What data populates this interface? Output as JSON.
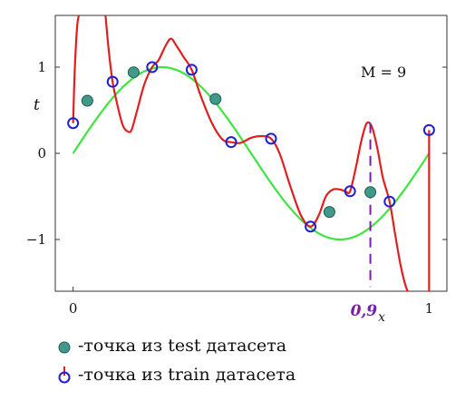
{
  "chart_data": {
    "type": "scatter",
    "ylabel": "t",
    "annotation": "M = 9",
    "xlim": [
      -0.05,
      1.05
    ],
    "ylim": [
      -1.6,
      1.6
    ],
    "x_ticks": [
      {
        "value": 0,
        "label": "0"
      },
      {
        "value": 1,
        "label": "1"
      }
    ],
    "y_ticks": [
      {
        "value": 1,
        "label": "1"
      },
      {
        "value": 0,
        "label": "0"
      },
      {
        "value": -1,
        "label": "−1"
      }
    ],
    "series": [
      {
        "name": "-точка из train датасета",
        "kind": "points",
        "points": [
          [
            0.0,
            0.35
          ],
          [
            0.111,
            0.83
          ],
          [
            0.222,
            1.0
          ],
          [
            0.333,
            0.97
          ],
          [
            0.444,
            0.13
          ],
          [
            0.556,
            0.17
          ],
          [
            0.667,
            -0.85
          ],
          [
            0.778,
            -0.44
          ],
          [
            0.889,
            -0.56
          ],
          [
            1.0,
            0.27
          ]
        ]
      },
      {
        "name": "-точка из test датасета",
        "kind": "points",
        "points": [
          [
            0.04,
            0.61
          ],
          [
            0.17,
            0.94
          ],
          [
            0.4,
            0.63
          ],
          [
            0.72,
            -0.68
          ],
          [
            0.835,
            -0.45
          ]
        ]
      },
      {
        "name": "sin(2πx)",
        "kind": "line",
        "x": [
          0,
          0.05,
          0.1,
          0.15,
          0.2,
          0.25,
          0.3,
          0.35,
          0.4,
          0.45,
          0.5,
          0.55,
          0.6,
          0.65,
          0.7,
          0.75,
          0.8,
          0.85,
          0.9,
          0.95,
          1.0
        ],
        "y": [
          0,
          0.309,
          0.588,
          0.809,
          0.951,
          1.0,
          0.951,
          0.809,
          0.588,
          0.309,
          0,
          -0.309,
          -0.588,
          -0.809,
          -0.951,
          -1.0,
          -0.951,
          -0.809,
          -0.588,
          -0.309,
          0
        ]
      },
      {
        "name": "M = 9 fit",
        "kind": "line",
        "segments": [
          {
            "x": [
              0.0,
              0.005,
              0.012,
              0.02
            ],
            "y": [
              0.35,
              1.0,
              1.5,
              1.65
            ]
          },
          {
            "x": [
              0.09,
              0.1,
              0.111,
              0.125,
              0.14,
              0.155,
              0.165,
              0.18,
              0.2,
              0.222,
              0.24,
              0.26,
              0.275,
              0.29,
              0.31,
              0.333,
              0.36,
              0.39,
              0.42,
              0.444,
              0.47,
              0.5,
              0.53,
              0.556,
              0.58,
              0.61,
              0.64,
              0.667,
              0.69,
              0.71,
              0.73,
              0.75,
              0.765,
              0.778,
              0.795,
              0.81,
              0.825,
              0.84,
              0.855,
              0.87,
              0.889,
              0.905,
              0.92,
              0.935,
              0.95
            ],
            "y": [
              1.65,
              1.2,
              0.83,
              0.55,
              0.32,
              0.25,
              0.28,
              0.5,
              0.8,
              1.0,
              1.08,
              1.25,
              1.33,
              1.25,
              1.12,
              0.97,
              0.65,
              0.35,
              0.16,
              0.13,
              0.12,
              0.18,
              0.2,
              0.17,
              0.0,
              -0.38,
              -0.72,
              -0.85,
              -0.72,
              -0.5,
              -0.42,
              -0.42,
              -0.44,
              -0.44,
              -0.15,
              0.15,
              0.35,
              0.3,
              0.05,
              -0.28,
              -0.56,
              -0.95,
              -1.3,
              -1.55,
              -1.68
            ]
          },
          {
            "x": [
              1.0,
              1.0
            ],
            "y": [
              -1.6,
              0.27
            ]
          }
        ]
      }
    ],
    "annotation_marker": {
      "label": "0,9",
      "subscript": "x",
      "x": 0.835,
      "y_from": 0.35,
      "y_to": -1.55
    }
  },
  "legend": {
    "test_label": "-точка из test датасета",
    "train_label": "-точка из train датасета"
  },
  "colors": {
    "green_curve": "#3ee53e",
    "red_curve": "#e02020",
    "train_stroke": "#1f1fd6",
    "test_fill": "#3f9a8a",
    "test_stroke": "#1f5a52",
    "annotation": "#7a1fa0"
  }
}
